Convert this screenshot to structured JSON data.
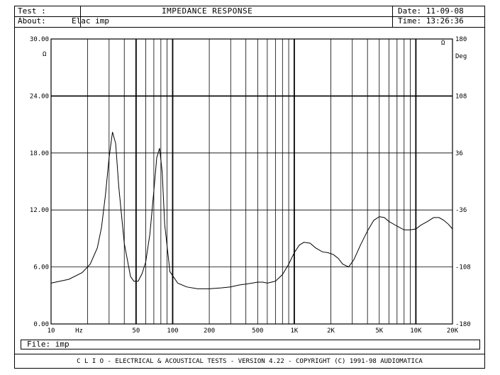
{
  "header": {
    "test_label": "Test :",
    "title": "IMPEDANCE RESPONSE",
    "date": "Date: 11-09-08",
    "about_label": "About:",
    "about_value": "Elac imp",
    "time": "Time: 13:26:36"
  },
  "file_line": "File: imp",
  "footer": "C L I O  -  ELECTRICAL & ACOUSTICAL TESTS  -  VERSION 4.22  -  COPYRIGHT (C) 1991-98 AUDIOMATICA",
  "chart_data": {
    "type": "line",
    "xscale": "log",
    "xlim": [
      10,
      20000
    ],
    "ylim": [
      0,
      30
    ],
    "y2lim": [
      -180,
      180
    ],
    "yunit": "Ω",
    "y2unit": "Deg",
    "y2_marker": "Ω",
    "xunit": "Hz",
    "grid": true,
    "x_ticks": [
      {
        "v": 10,
        "label": "10"
      },
      {
        "v": 50,
        "label": "50"
      },
      {
        "v": 100,
        "label": "100"
      },
      {
        "v": 200,
        "label": "200"
      },
      {
        "v": 500,
        "label": "500"
      },
      {
        "v": 1000,
        "label": "1K"
      },
      {
        "v": 2000,
        "label": "2K"
      },
      {
        "v": 5000,
        "label": "5K"
      },
      {
        "v": 10000,
        "label": "10K"
      },
      {
        "v": 20000,
        "label": "20K"
      }
    ],
    "y_ticks": [
      "0.00",
      "6.00",
      "12.00",
      "18.00",
      "24.00",
      "30.00"
    ],
    "y2_ticks": [
      "-180",
      "-108",
      "-36",
      "36",
      "108",
      "180"
    ],
    "series": [
      {
        "x": [
          10,
          14,
          18,
          21,
          24,
          26,
          28,
          30,
          32,
          34,
          36,
          40,
          45,
          48,
          52,
          56,
          60,
          65,
          70,
          74,
          78,
          82,
          86,
          95,
          110,
          130,
          160,
          200,
          250,
          300,
          350,
          400,
          450,
          500,
          550,
          600,
          700,
          800,
          900,
          1000,
          1100,
          1200,
          1350,
          1500,
          1700,
          1900,
          2100,
          2300,
          2500,
          2800,
          3100,
          3500,
          4000,
          4500,
          5000,
          5500,
          6000,
          7000,
          8000,
          9000,
          10000,
          11000,
          12500,
          14000,
          15500,
          17000,
          18500,
          20000
        ],
        "y": [
          4.3,
          4.7,
          5.4,
          6.3,
          8.0,
          10.2,
          13.6,
          17.5,
          20.2,
          19.0,
          14.5,
          8.5,
          5.0,
          4.5,
          4.5,
          5.3,
          6.5,
          9.5,
          14.0,
          17.5,
          18.5,
          16.0,
          10.5,
          5.5,
          4.3,
          3.9,
          3.7,
          3.7,
          3.8,
          3.9,
          4.1,
          4.2,
          4.3,
          4.4,
          4.4,
          4.3,
          4.5,
          5.2,
          6.3,
          7.5,
          8.3,
          8.6,
          8.5,
          8.0,
          7.6,
          7.5,
          7.3,
          6.9,
          6.3,
          6.0,
          6.8,
          8.3,
          9.8,
          10.9,
          11.3,
          11.2,
          10.8,
          10.3,
          9.9,
          9.9,
          10.0,
          10.4,
          10.8,
          11.2,
          11.2,
          10.9,
          10.5,
          10.0
        ]
      }
    ]
  }
}
